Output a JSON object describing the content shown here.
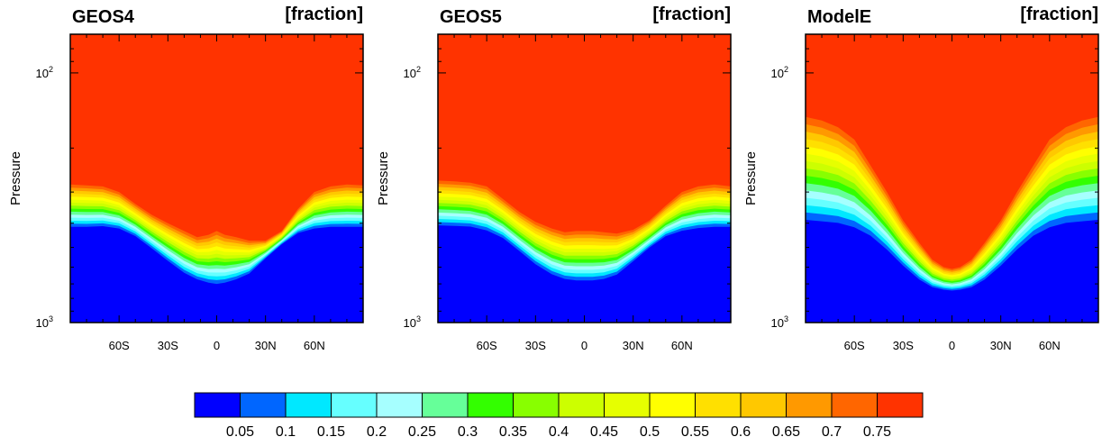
{
  "chart_data": {
    "type": "contour",
    "panels": [
      {
        "title": "GEOS4",
        "units": "[fraction]",
        "profile": [
          [
            -90,
            280,
            425
          ],
          [
            -80,
            282,
            425
          ],
          [
            -70,
            285,
            422
          ],
          [
            -60,
            300,
            430
          ],
          [
            -50,
            335,
            460
          ],
          [
            -40,
            370,
            515
          ],
          [
            -30,
            400,
            580
          ],
          [
            -20,
            430,
            650
          ],
          [
            -12,
            455,
            690
          ],
          [
            -5,
            445,
            715
          ],
          [
            0,
            430,
            725
          ],
          [
            5,
            445,
            715
          ],
          [
            12,
            455,
            690
          ],
          [
            20,
            470,
            650
          ],
          [
            30,
            470,
            560
          ],
          [
            40,
            430,
            490
          ],
          [
            50,
            350,
            445
          ],
          [
            60,
            300,
            430
          ],
          [
            70,
            285,
            425
          ],
          [
            80,
            280,
            425
          ],
          [
            90,
            282,
            425
          ]
        ]
      },
      {
        "title": "GEOS5",
        "units": "[fraction]",
        "profile": [
          [
            -90,
            270,
            420
          ],
          [
            -80,
            272,
            422
          ],
          [
            -70,
            275,
            425
          ],
          [
            -60,
            285,
            440
          ],
          [
            -50,
            320,
            470
          ],
          [
            -40,
            360,
            530
          ],
          [
            -30,
            395,
            600
          ],
          [
            -20,
            420,
            660
          ],
          [
            -12,
            435,
            690
          ],
          [
            -5,
            430,
            700
          ],
          [
            0,
            430,
            700
          ],
          [
            5,
            430,
            700
          ],
          [
            12,
            435,
            690
          ],
          [
            20,
            440,
            660
          ],
          [
            30,
            425,
            580
          ],
          [
            40,
            390,
            510
          ],
          [
            50,
            340,
            460
          ],
          [
            60,
            300,
            440
          ],
          [
            70,
            285,
            430
          ],
          [
            80,
            280,
            425
          ],
          [
            90,
            285,
            425
          ]
        ]
      },
      {
        "title": "ModelE",
        "units": "[fraction]",
        "profile": [
          [
            -90,
            150,
            415
          ],
          [
            -80,
            155,
            420
          ],
          [
            -70,
            165,
            425
          ],
          [
            -60,
            185,
            440
          ],
          [
            -50,
            235,
            470
          ],
          [
            -40,
            300,
            530
          ],
          [
            -30,
            390,
            610
          ],
          [
            -20,
            480,
            690
          ],
          [
            -12,
            560,
            735
          ],
          [
            -5,
            600,
            750
          ],
          [
            0,
            610,
            755
          ],
          [
            5,
            600,
            750
          ],
          [
            12,
            560,
            735
          ],
          [
            20,
            480,
            690
          ],
          [
            30,
            390,
            610
          ],
          [
            40,
            300,
            530
          ],
          [
            50,
            235,
            470
          ],
          [
            60,
            185,
            440
          ],
          [
            70,
            165,
            425
          ],
          [
            80,
            155,
            420
          ],
          [
            90,
            150,
            415
          ]
        ]
      }
    ],
    "x_ticks": [
      "60S",
      "30S",
      "0",
      "30N",
      "60N"
    ],
    "x_tick_values": [
      -60,
      -30,
      0,
      30,
      60
    ],
    "xlim": [
      -90,
      90
    ],
    "ylabel": "Pressure",
    "y_ticks": [
      {
        "base": "10",
        "exp": "2",
        "value": 100
      },
      {
        "base": "10",
        "exp": "3",
        "value": 1000
      }
    ],
    "ylim": [
      70,
      1000
    ],
    "y_scale": "log-reversed",
    "colorbar": {
      "labels": [
        "0.05",
        "0.1",
        "0.15",
        "0.2",
        "0.25",
        "0.3",
        "0.35",
        "0.4",
        "0.45",
        "0.5",
        "0.55",
        "0.6",
        "0.65",
        "0.7",
        "0.75"
      ],
      "levels": [
        0.05,
        0.1,
        0.15,
        0.2,
        0.25,
        0.3,
        0.35,
        0.4,
        0.45,
        0.5,
        0.55,
        0.6,
        0.65,
        0.7,
        0.75
      ],
      "colors": [
        "#0000ff",
        "#0066ff",
        "#00e8ff",
        "#66ffff",
        "#a6ffff",
        "#66ff99",
        "#33ff00",
        "#88ff00",
        "#ccff00",
        "#e6ff00",
        "#ffff00",
        "#ffe000",
        "#ffc800",
        "#ff9900",
        "#ff6600",
        "#ff3300"
      ]
    }
  }
}
